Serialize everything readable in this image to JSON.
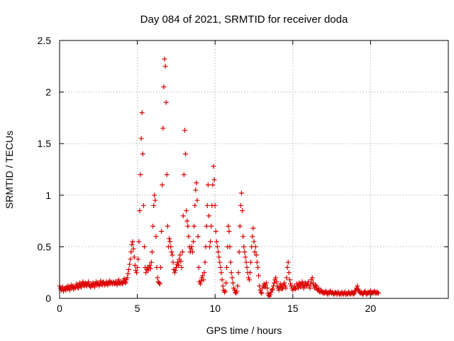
{
  "chart_data": {
    "type": "scatter",
    "title": "Day 084 of 2021, SRMTID for receiver doda",
    "xlabel": "GPS time / hours",
    "ylabel": "SRMTID / TECUs",
    "xlim": [
      0,
      25
    ],
    "ylim": [
      0,
      2.5
    ],
    "xticks": [
      0,
      5,
      10,
      15,
      20
    ],
    "xtick_labels": [
      "0",
      "5",
      "10",
      "15",
      "20"
    ],
    "yticks": [
      0,
      0.5,
      1,
      1.5,
      2,
      2.5
    ],
    "ytick_labels": [
      "0",
      "0.5",
      "1",
      "1.5",
      "2",
      "2.5"
    ],
    "grid": true,
    "marker": "+",
    "color": "#dd0000",
    "series": [
      {
        "name": "SRMTID",
        "x_start": 0,
        "x_step": 0.05,
        "values": [
          0.12,
          0.1,
          0.08,
          0.09,
          0.11,
          0.07,
          0.09,
          0.1,
          0.08,
          0.11,
          0.09,
          0.12,
          0.1,
          0.08,
          0.11,
          0.13,
          0.1,
          0.12,
          0.09,
          0.11,
          0.1,
          0.12,
          0.14,
          0.11,
          0.1,
          0.13,
          0.15,
          0.12,
          0.11,
          0.14,
          0.16,
          0.13,
          0.12,
          0.15,
          0.13,
          0.12,
          0.14,
          0.16,
          0.13,
          0.12,
          0.11,
          0.14,
          0.12,
          0.15,
          0.13,
          0.11,
          0.14,
          0.16,
          0.13,
          0.15,
          0.14,
          0.12,
          0.15,
          0.17,
          0.14,
          0.13,
          0.16,
          0.15,
          0.13,
          0.14,
          0.16,
          0.14,
          0.13,
          0.15,
          0.17,
          0.14,
          0.16,
          0.15,
          0.14,
          0.16,
          0.15,
          0.14,
          0.16,
          0.15,
          0.13,
          0.16,
          0.18,
          0.15,
          0.14,
          0.16,
          0.15,
          0.14,
          0.17,
          0.19,
          0.16,
          0.15,
          0.18,
          0.2,
          0.24,
          0.28,
          0.33,
          0.38,
          0.45,
          0.52,
          0.55,
          0.48,
          0.4,
          0.32,
          0.27,
          0.25,
          0.3,
          0.38,
          0.55,
          0.85,
          1.2,
          1.55,
          1.8,
          1.4,
          0.9,
          0.5,
          0.3,
          0.25,
          0.28,
          0.3,
          0.27,
          0.3,
          0.32,
          0.29,
          0.35,
          0.45,
          0.7,
          0.9,
          1.0,
          0.95,
          0.6,
          0.3,
          0.2,
          0.16,
          0.15,
          0.14,
          0.3,
          0.65,
          1.1,
          1.65,
          2.05,
          2.32,
          2.25,
          1.9,
          1.2,
          0.7,
          0.5,
          0.58,
          0.55,
          0.5,
          0.45,
          0.42,
          0.35,
          0.28,
          0.25,
          0.27,
          0.3,
          0.33,
          0.35,
          0.32,
          0.38,
          0.42,
          0.36,
          0.3,
          0.45,
          0.8,
          1.2,
          1.63,
          1.4,
          0.85,
          0.75,
          0.7,
          0.6,
          0.5,
          0.45,
          0.48,
          0.5,
          0.45,
          0.55,
          0.7,
          0.9,
          1.05,
          1.12,
          0.95,
          0.6,
          0.3,
          0.16,
          0.14,
          0.17,
          0.2,
          0.22,
          0.18,
          0.25,
          0.35,
          0.5,
          0.7,
          0.9,
          1.1,
          0.8,
          0.5,
          0.55,
          0.7,
          0.9,
          1.1,
          1.28,
          1.15,
          0.9,
          0.65,
          0.55,
          0.5,
          0.45,
          0.4,
          0.35,
          0.3,
          0.25,
          0.18,
          0.12,
          0.08,
          0.06,
          0.07,
          0.15,
          0.3,
          0.5,
          0.7,
          0.65,
          0.5,
          0.35,
          0.25,
          0.2,
          0.15,
          0.1,
          0.08,
          0.06,
          0.05,
          0.07,
          0.12,
          0.25,
          0.45,
          0.7,
          0.9,
          1.02,
          0.85,
          0.6,
          0.5,
          0.45,
          0.4,
          0.35,
          0.3,
          0.25,
          0.2,
          0.18,
          0.25,
          0.35,
          0.5,
          0.6,
          0.68,
          0.55,
          0.45,
          0.5,
          0.42,
          0.35,
          0.3,
          0.22,
          0.12,
          0.08,
          0.06,
          0.05,
          0.1,
          0.12,
          0.14,
          0.11,
          0.13,
          0.15,
          0.1,
          0.05,
          0.03,
          0.02,
          0.04,
          0.06,
          0.08,
          0.09,
          0.12,
          0.15,
          0.18,
          0.2,
          0.16,
          0.12,
          0.1,
          0.08,
          0.11,
          0.14,
          0.12,
          0.09,
          0.1,
          0.13,
          0.15,
          0.12,
          0.1,
          0.2,
          0.3,
          0.35,
          0.25,
          0.18,
          0.14,
          0.12,
          0.1,
          0.08,
          0.1,
          0.12,
          0.09,
          0.1,
          0.14,
          0.12,
          0.1,
          0.15,
          0.13,
          0.11,
          0.14,
          0.16,
          0.13,
          0.1,
          0.12,
          0.15,
          0.13,
          0.12,
          0.14,
          0.16,
          0.12,
          0.1,
          0.14,
          0.18,
          0.2,
          0.15,
          0.12,
          0.1,
          0.13,
          0.12,
          0.09,
          0.08,
          0.1,
          0.07,
          0.06,
          0.08,
          0.07,
          0.06,
          0.05,
          0.06,
          0.05,
          0.07,
          0.06,
          0.05,
          0.04,
          0.06,
          0.05,
          0.07,
          0.06,
          0.05,
          0.06,
          0.05,
          0.04,
          0.05,
          0.06,
          0.05,
          0.04,
          0.06,
          0.05,
          0.04,
          0.05,
          0.04,
          0.06,
          0.05,
          0.04,
          0.05,
          0.06,
          0.04,
          0.05,
          0.04,
          0.05,
          0.06,
          0.05,
          0.04,
          0.05,
          0.06,
          0.05,
          0.04,
          0.05,
          0.07,
          0.08,
          0.1,
          0.12,
          0.09,
          0.07,
          0.06,
          0.05,
          0.06,
          0.05,
          0.04,
          0.05,
          0.06,
          0.07,
          0.05,
          0.04,
          0.05,
          0.06,
          0.05,
          0.06,
          0.07,
          0.05,
          0.06,
          0.05,
          0.06,
          0.07,
          0.05,
          0.06,
          0.05,
          0.06,
          0.05
        ]
      }
    ]
  }
}
